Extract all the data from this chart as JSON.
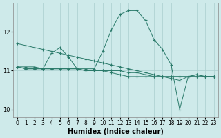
{
  "background_color": "#ceeaea",
  "grid_color": "#aacece",
  "line_color": "#2a7a6a",
  "marker": "+",
  "xlabel": "Humidex (Indice chaleur)",
  "xlim": [
    -0.5,
    23.5
  ],
  "ylim": [
    9.8,
    12.75
  ],
  "yticks": [
    10,
    11,
    12
  ],
  "xticks": [
    0,
    1,
    2,
    3,
    4,
    5,
    6,
    7,
    8,
    9,
    10,
    11,
    12,
    13,
    14,
    15,
    16,
    17,
    18,
    19,
    20,
    21,
    22,
    23
  ],
  "series": [
    {
      "x": [
        0,
        1,
        2,
        3,
        4,
        5,
        6,
        7,
        8,
        9,
        10,
        11,
        12,
        13,
        14,
        15,
        16,
        17,
        18,
        19,
        20,
        21,
        22,
        23
      ],
      "y": [
        11.7,
        11.65,
        11.6,
        11.55,
        11.5,
        11.45,
        11.4,
        11.35,
        11.3,
        11.25,
        11.2,
        11.15,
        11.1,
        11.05,
        11.0,
        10.95,
        10.9,
        10.85,
        10.8,
        10.75,
        10.85,
        10.85,
        10.85,
        10.85
      ]
    },
    {
      "x": [
        0,
        1,
        2,
        3,
        4,
        5,
        6,
        7,
        8,
        9,
        10,
        11,
        12,
        13,
        14,
        15,
        16,
        17,
        18,
        19,
        20,
        21,
        22,
        23
      ],
      "y": [
        11.1,
        11.1,
        11.1,
        11.05,
        11.45,
        11.6,
        11.35,
        11.05,
        11.05,
        11.05,
        11.5,
        12.05,
        12.45,
        12.55,
        12.55,
        12.3,
        11.8,
        11.55,
        11.15,
        10.0,
        10.85,
        10.9,
        10.85,
        10.85
      ]
    },
    {
      "x": [
        0,
        1,
        2,
        3,
        4,
        5,
        6,
        7,
        8,
        9,
        10,
        11,
        12,
        13,
        14,
        15,
        16,
        17,
        18,
        19,
        20,
        21,
        22,
        23
      ],
      "y": [
        11.1,
        11.05,
        11.05,
        11.05,
        11.05,
        11.05,
        11.05,
        11.05,
        11.0,
        11.0,
        11.0,
        11.0,
        11.0,
        10.95,
        10.95,
        10.9,
        10.85,
        10.85,
        10.85,
        10.85,
        10.85,
        10.85,
        10.85,
        10.85
      ]
    },
    {
      "x": [
        0,
        1,
        2,
        3,
        4,
        5,
        6,
        7,
        8,
        9,
        10,
        11,
        12,
        13,
        14,
        15,
        16,
        17,
        18,
        19,
        20,
        21,
        22,
        23
      ],
      "y": [
        11.1,
        11.05,
        11.05,
        11.05,
        11.05,
        11.05,
        11.05,
        11.05,
        11.0,
        11.0,
        11.0,
        10.95,
        10.9,
        10.85,
        10.85,
        10.85,
        10.85,
        10.85,
        10.85,
        10.85,
        10.85,
        10.9,
        10.85,
        10.85
      ]
    }
  ]
}
